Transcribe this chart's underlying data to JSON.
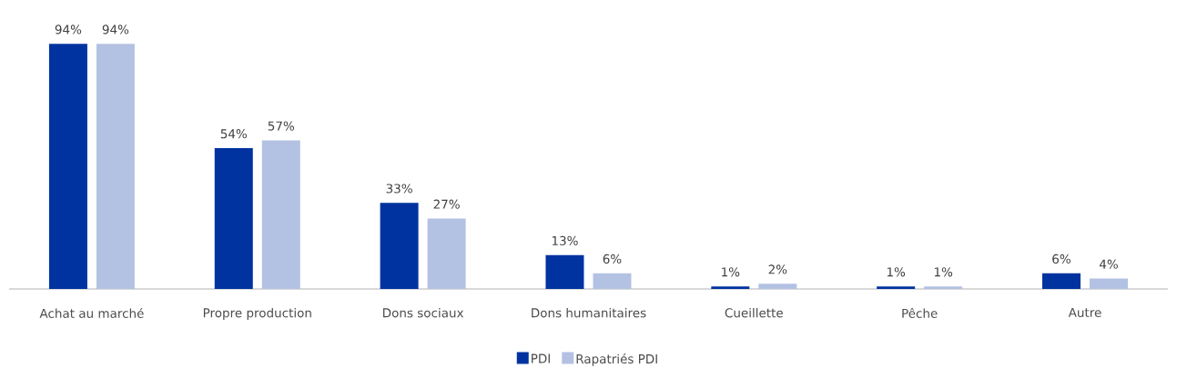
{
  "chart_data": {
    "type": "bar",
    "categories": [
      "Achat au marché",
      "Propre production",
      "Dons sociaux",
      "Dons humanitaires",
      "Cueillette",
      "Pêche",
      "Autre"
    ],
    "series": [
      {
        "name": "PDI",
        "color": "#0033a0",
        "values": [
          94,
          54,
          33,
          13,
          1,
          1,
          6
        ],
        "value_labels": [
          "94%",
          "54%",
          "33%",
          "13%",
          "1%",
          "1%",
          "6%"
        ]
      },
      {
        "name": "Rapatriés PDI",
        "color": "#b3c2e3",
        "values": [
          94,
          57,
          27,
          6,
          2,
          1,
          4
        ],
        "value_labels": [
          "94%",
          "57%",
          "27%",
          "6%",
          "2%",
          "1%",
          "4%"
        ]
      }
    ],
    "legend": "bottom"
  }
}
